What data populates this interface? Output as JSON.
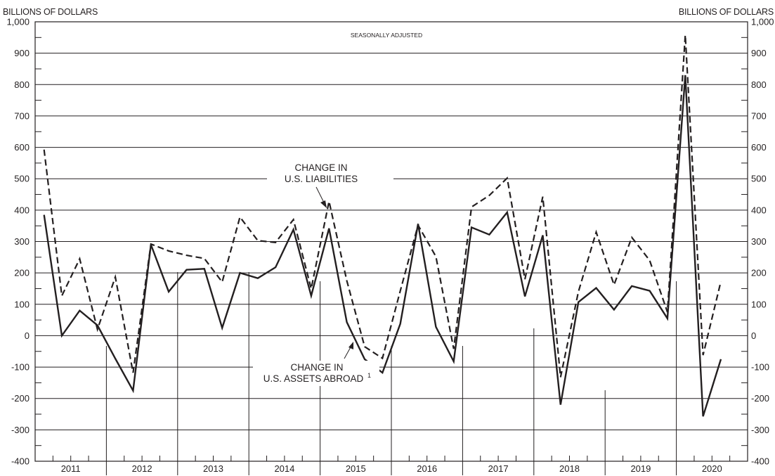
{
  "chart_data": {
    "type": "line",
    "ylabel_left": "BILLIONS OF DOLLARS",
    "ylabel_right": "BILLIONS OF DOLLARS",
    "annotation_top": "SEASONALLY ADJUSTED",
    "ylim": [
      -400,
      1000
    ],
    "yticks": [
      "-400",
      "-300",
      "-200",
      "-100",
      "0",
      "100",
      "200",
      "300",
      "400",
      "500",
      "600",
      "700",
      "800",
      "900",
      "1,000"
    ],
    "ytick_values": [
      -400,
      -300,
      -200,
      -100,
      0,
      100,
      200,
      300,
      400,
      500,
      600,
      700,
      800,
      900,
      1000
    ],
    "years": [
      "2011",
      "2012",
      "2013",
      "2014",
      "2015",
      "2016",
      "2017",
      "2018",
      "2019",
      "2020"
    ],
    "quarters": [
      "2011 Q1",
      "2011 Q2",
      "2011 Q3",
      "2011 Q4",
      "2012 Q1",
      "2012 Q2",
      "2012 Q3",
      "2012 Q4",
      "2013 Q1",
      "2013 Q2",
      "2013 Q3",
      "2013 Q4",
      "2014 Q1",
      "2014 Q2",
      "2014 Q3",
      "2014 Q4",
      "2015 Q1",
      "2015 Q2",
      "2015 Q3",
      "2015 Q4",
      "2016 Q1",
      "2016 Q2",
      "2016 Q3",
      "2016 Q4",
      "2017 Q1",
      "2017 Q2",
      "2017 Q3",
      "2017 Q4",
      "2018 Q1",
      "2018 Q2",
      "2018 Q3",
      "2018 Q4",
      "2019 Q1",
      "2019 Q2",
      "2019 Q3",
      "2019 Q4",
      "2020 Q1",
      "2020 Q2",
      "2020 Q3",
      "2020 Q4"
    ],
    "grid": "horizontal",
    "series": [
      {
        "name": "CHANGE IN U.S. LIABILITIES",
        "style": "dashed",
        "label_lines": [
          "CHANGE IN",
          "U.S. LIABILITIES"
        ],
        "values": [
          593,
          127,
          245,
          20,
          187,
          -118,
          292,
          270,
          256,
          246,
          171,
          378,
          303,
          297,
          370,
          150,
          428,
          175,
          -35,
          -72,
          143,
          352,
          252,
          -42,
          410,
          447,
          502,
          180,
          443,
          -132,
          140,
          330,
          162,
          313,
          240,
          75,
          958,
          -62,
          173,
          null
        ]
      },
      {
        "name": "CHANGE IN U.S. ASSETS ABROAD",
        "label_superscript": "1",
        "style": "solid",
        "label_lines": [
          "CHANGE IN",
          "U.S. ASSETS ABROAD"
        ],
        "values": [
          385,
          0,
          80,
          33,
          -73,
          -175,
          290,
          140,
          210,
          213,
          25,
          200,
          183,
          218,
          338,
          127,
          342,
          43,
          -75,
          -118,
          38,
          356,
          28,
          -82,
          345,
          322,
          393,
          125,
          320,
          -220,
          107,
          152,
          83,
          158,
          143,
          55,
          830,
          -257,
          -75,
          null
        ]
      }
    ]
  }
}
